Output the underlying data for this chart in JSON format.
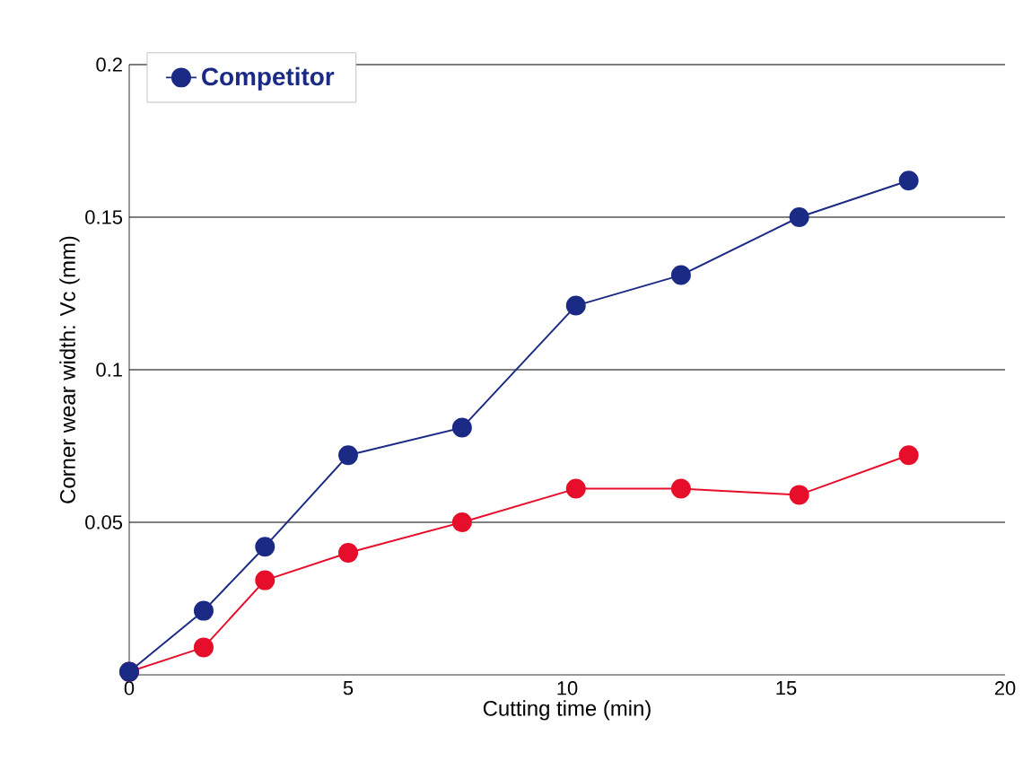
{
  "chart_data": {
    "type": "line",
    "xlabel": "Cutting time (min)",
    "ylabel": "Corner wear width: Vc (mm)",
    "x": [
      0,
      1.7,
      3.1,
      5,
      7.6,
      10.2,
      12.6,
      15.3,
      17.8
    ],
    "series": [
      {
        "color": "#e60e2a",
        "values": [
          0.001,
          0.009,
          0.031,
          0.04,
          0.05,
          0.061,
          0.061,
          0.059,
          0.072
        ]
      },
      {
        "name": "Competitor",
        "color": "#1b2b85",
        "values": [
          0.001,
          0.021,
          0.042,
          0.072,
          0.081,
          0.121,
          0.131,
          0.15,
          0.162
        ]
      }
    ],
    "xlim": [
      0,
      20
    ],
    "ylim": [
      0,
      0.2
    ],
    "xticks": [
      0,
      5,
      10,
      15,
      20
    ],
    "yticks": [
      0.05,
      0.1,
      0.15,
      0.2
    ],
    "grid": "y",
    "legend": "top left",
    "marker": "circle",
    "line_style": "solid"
  }
}
